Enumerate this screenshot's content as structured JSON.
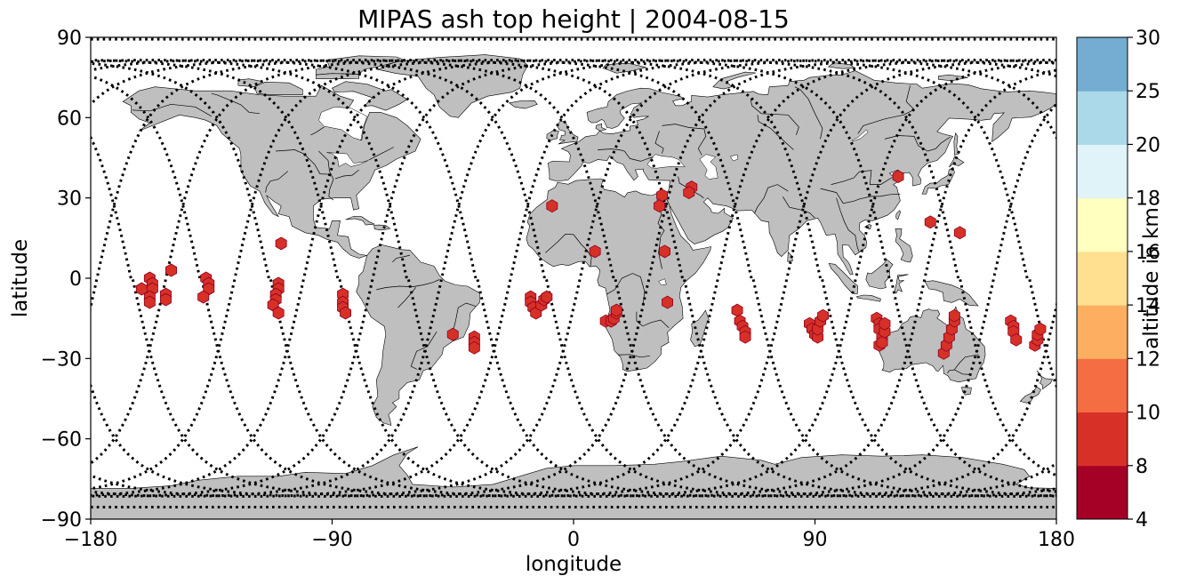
{
  "title": "MIPAS ash top height | 2004-08-15",
  "map": {
    "xlabel": "longitude",
    "ylabel": "latitude",
    "xlim": [
      -180,
      180
    ],
    "ylim": [
      -90,
      90
    ],
    "xticks": [
      -180,
      -90,
      0,
      90,
      180
    ],
    "yticks": [
      90,
      60,
      30,
      0,
      -30,
      -60,
      -90
    ],
    "land_color": "#bfbfbf",
    "ocean_color": "#ffffff",
    "track_color": "#000000",
    "detection_color": "#a50026"
  },
  "colorbar": {
    "label": "altitude in km",
    "bounds": [
      4,
      8,
      10,
      12,
      14,
      16,
      18,
      20,
      25,
      30
    ],
    "colors": [
      "#a50026",
      "#d73027",
      "#f46d43",
      "#fdae61",
      "#fee090",
      "#ffffbf",
      "#e0f3f8",
      "#abd9e9",
      "#74add1",
      "#4575b4",
      "#313695"
    ]
  },
  "chart_data": {
    "type": "scatter",
    "title": "MIPAS ash top height | 2004-08-15",
    "xlabel": "longitude",
    "ylabel": "latitude",
    "xlim": [
      -180,
      180
    ],
    "ylim": [
      -90,
      90
    ],
    "grid": false,
    "detections": [
      {
        "lon": -161,
        "lat": -4,
        "alt": 6
      },
      {
        "lon": -158,
        "lat": 0,
        "alt": 6
      },
      {
        "lon": -157,
        "lat": -2,
        "alt": 6
      },
      {
        "lon": -157,
        "lat": -4,
        "alt": 6
      },
      {
        "lon": -158,
        "lat": -7,
        "alt": 6
      },
      {
        "lon": -158,
        "lat": -9,
        "alt": 6
      },
      {
        "lon": -152,
        "lat": -6,
        "alt": 6
      },
      {
        "lon": -152,
        "lat": -8,
        "alt": 6
      },
      {
        "lon": -150,
        "lat": 3,
        "alt": 6
      },
      {
        "lon": -137,
        "lat": 0,
        "alt": 6
      },
      {
        "lon": -136,
        "lat": -2,
        "alt": 6
      },
      {
        "lon": -136,
        "lat": -4,
        "alt": 6
      },
      {
        "lon": -138,
        "lat": -7,
        "alt": 6
      },
      {
        "lon": -109,
        "lat": 13,
        "alt": 6
      },
      {
        "lon": -110,
        "lat": -2,
        "alt": 6
      },
      {
        "lon": -110,
        "lat": -4,
        "alt": 6
      },
      {
        "lon": -111,
        "lat": -6,
        "alt": 6
      },
      {
        "lon": -111,
        "lat": -8,
        "alt": 6
      },
      {
        "lon": -112,
        "lat": -10,
        "alt": 6
      },
      {
        "lon": -110,
        "lat": -13,
        "alt": 6
      },
      {
        "lon": -86,
        "lat": -6,
        "alt": 6
      },
      {
        "lon": -86,
        "lat": -9,
        "alt": 6
      },
      {
        "lon": -86,
        "lat": -11,
        "alt": 6
      },
      {
        "lon": -85,
        "lat": -13,
        "alt": 6
      },
      {
        "lon": -45,
        "lat": -21,
        "alt": 6
      },
      {
        "lon": -37,
        "lat": -22,
        "alt": 6
      },
      {
        "lon": -37,
        "lat": -24,
        "alt": 6
      },
      {
        "lon": -37,
        "lat": -26,
        "alt": 6
      },
      {
        "lon": -8,
        "lat": 27,
        "alt": 6
      },
      {
        "lon": -16,
        "lat": -7,
        "alt": 6
      },
      {
        "lon": -16,
        "lat": -9,
        "alt": 6
      },
      {
        "lon": -15,
        "lat": -11,
        "alt": 6
      },
      {
        "lon": -14,
        "lat": -13,
        "alt": 6
      },
      {
        "lon": -12,
        "lat": -10,
        "alt": 6
      },
      {
        "lon": -11,
        "lat": -8,
        "alt": 6
      },
      {
        "lon": -10,
        "lat": -7,
        "alt": 6
      },
      {
        "lon": 8,
        "lat": 10,
        "alt": 6
      },
      {
        "lon": 12,
        "lat": -16,
        "alt": 6
      },
      {
        "lon": 14,
        "lat": -16,
        "alt": 6
      },
      {
        "lon": 15,
        "lat": -15,
        "alt": 6
      },
      {
        "lon": 16,
        "lat": -13,
        "alt": 6
      },
      {
        "lon": 16,
        "lat": -12,
        "alt": 6
      },
      {
        "lon": 33,
        "lat": 31,
        "alt": 6
      },
      {
        "lon": 32,
        "lat": 27,
        "alt": 6
      },
      {
        "lon": 44,
        "lat": 34,
        "alt": 6
      },
      {
        "lon": 43,
        "lat": 32,
        "alt": 6
      },
      {
        "lon": 34,
        "lat": 10,
        "alt": 6
      },
      {
        "lon": 35,
        "lat": -9,
        "alt": 6
      },
      {
        "lon": 61,
        "lat": -12,
        "alt": 6
      },
      {
        "lon": 62,
        "lat": -16,
        "alt": 6
      },
      {
        "lon": 63,
        "lat": -18,
        "alt": 6
      },
      {
        "lon": 64,
        "lat": -20,
        "alt": 6
      },
      {
        "lon": 64,
        "lat": -22,
        "alt": 6
      },
      {
        "lon": 88,
        "lat": -17,
        "alt": 6
      },
      {
        "lon": 89,
        "lat": -19,
        "alt": 6
      },
      {
        "lon": 90,
        "lat": -21,
        "alt": 6
      },
      {
        "lon": 91,
        "lat": -22,
        "alt": 6
      },
      {
        "lon": 91,
        "lat": -19,
        "alt": 6
      },
      {
        "lon": 92,
        "lat": -16,
        "alt": 6
      },
      {
        "lon": 93,
        "lat": -14,
        "alt": 6
      },
      {
        "lon": 113,
        "lat": -15,
        "alt": 6
      },
      {
        "lon": 114,
        "lat": -17,
        "alt": 6
      },
      {
        "lon": 114,
        "lat": -19,
        "alt": 6
      },
      {
        "lon": 115,
        "lat": -22,
        "alt": 6
      },
      {
        "lon": 114,
        "lat": -25,
        "alt": 6
      },
      {
        "lon": 115,
        "lat": -24,
        "alt": 6
      },
      {
        "lon": 116,
        "lat": -20,
        "alt": 6
      },
      {
        "lon": 116,
        "lat": -17,
        "alt": 6
      },
      {
        "lon": 121,
        "lat": 38,
        "alt": 6
      },
      {
        "lon": 133,
        "lat": 21,
        "alt": 6
      },
      {
        "lon": 144,
        "lat": 17,
        "alt": 6
      },
      {
        "lon": 138,
        "lat": -28,
        "alt": 6
      },
      {
        "lon": 139,
        "lat": -25,
        "alt": 6
      },
      {
        "lon": 140,
        "lat": -22,
        "alt": 6
      },
      {
        "lon": 141,
        "lat": -19,
        "alt": 6
      },
      {
        "lon": 142,
        "lat": -16,
        "alt": 6
      },
      {
        "lon": 142,
        "lat": -14,
        "alt": 6
      },
      {
        "lon": 163,
        "lat": -16,
        "alt": 6
      },
      {
        "lon": 164,
        "lat": -18,
        "alt": 6
      },
      {
        "lon": 164,
        "lat": -20,
        "alt": 6
      },
      {
        "lon": 165,
        "lat": -23,
        "alt": 6
      },
      {
        "lon": 172,
        "lat": -25,
        "alt": 6
      },
      {
        "lon": 173,
        "lat": -23,
        "alt": 6
      },
      {
        "lon": 173,
        "lat": -21,
        "alt": 6
      },
      {
        "lon": 174,
        "lat": -19,
        "alt": 6
      }
    ]
  }
}
